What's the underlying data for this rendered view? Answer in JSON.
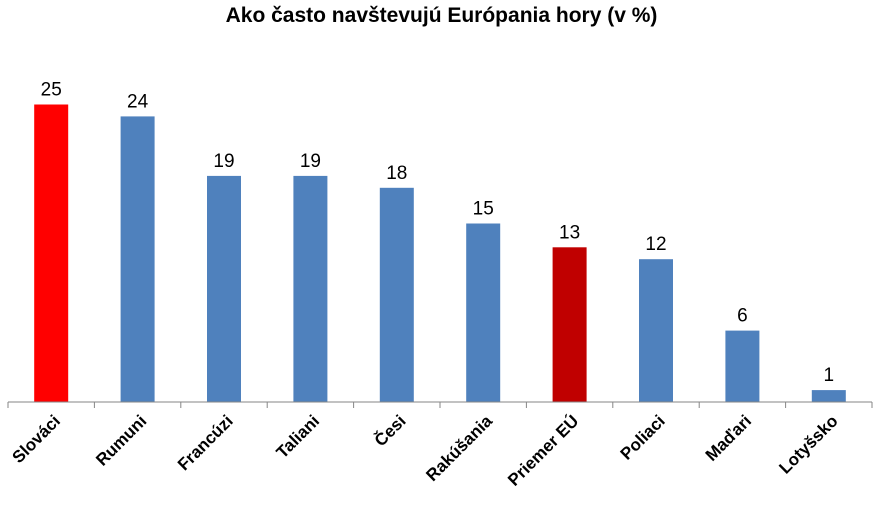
{
  "chart_data": {
    "type": "bar",
    "title": "Ako často navštevujú Európania hory (v %)",
    "xlabel": "",
    "ylabel": "",
    "ylim": [
      0,
      25
    ],
    "grid": false,
    "categories": [
      "Slováci",
      "Rumuni",
      "Francúzi",
      "Taliani",
      "Česi",
      "Rakúšania",
      "Priemer EÚ",
      "Poliaci",
      "Maďari",
      "Lotyšsko"
    ],
    "values": [
      25,
      24,
      19,
      19,
      18,
      15,
      13,
      12,
      6,
      1
    ],
    "colors": [
      "#ff0000",
      "#4f81bd",
      "#4f81bd",
      "#4f81bd",
      "#4f81bd",
      "#4f81bd",
      "#c00000",
      "#4f81bd",
      "#4f81bd",
      "#4f81bd"
    ]
  }
}
